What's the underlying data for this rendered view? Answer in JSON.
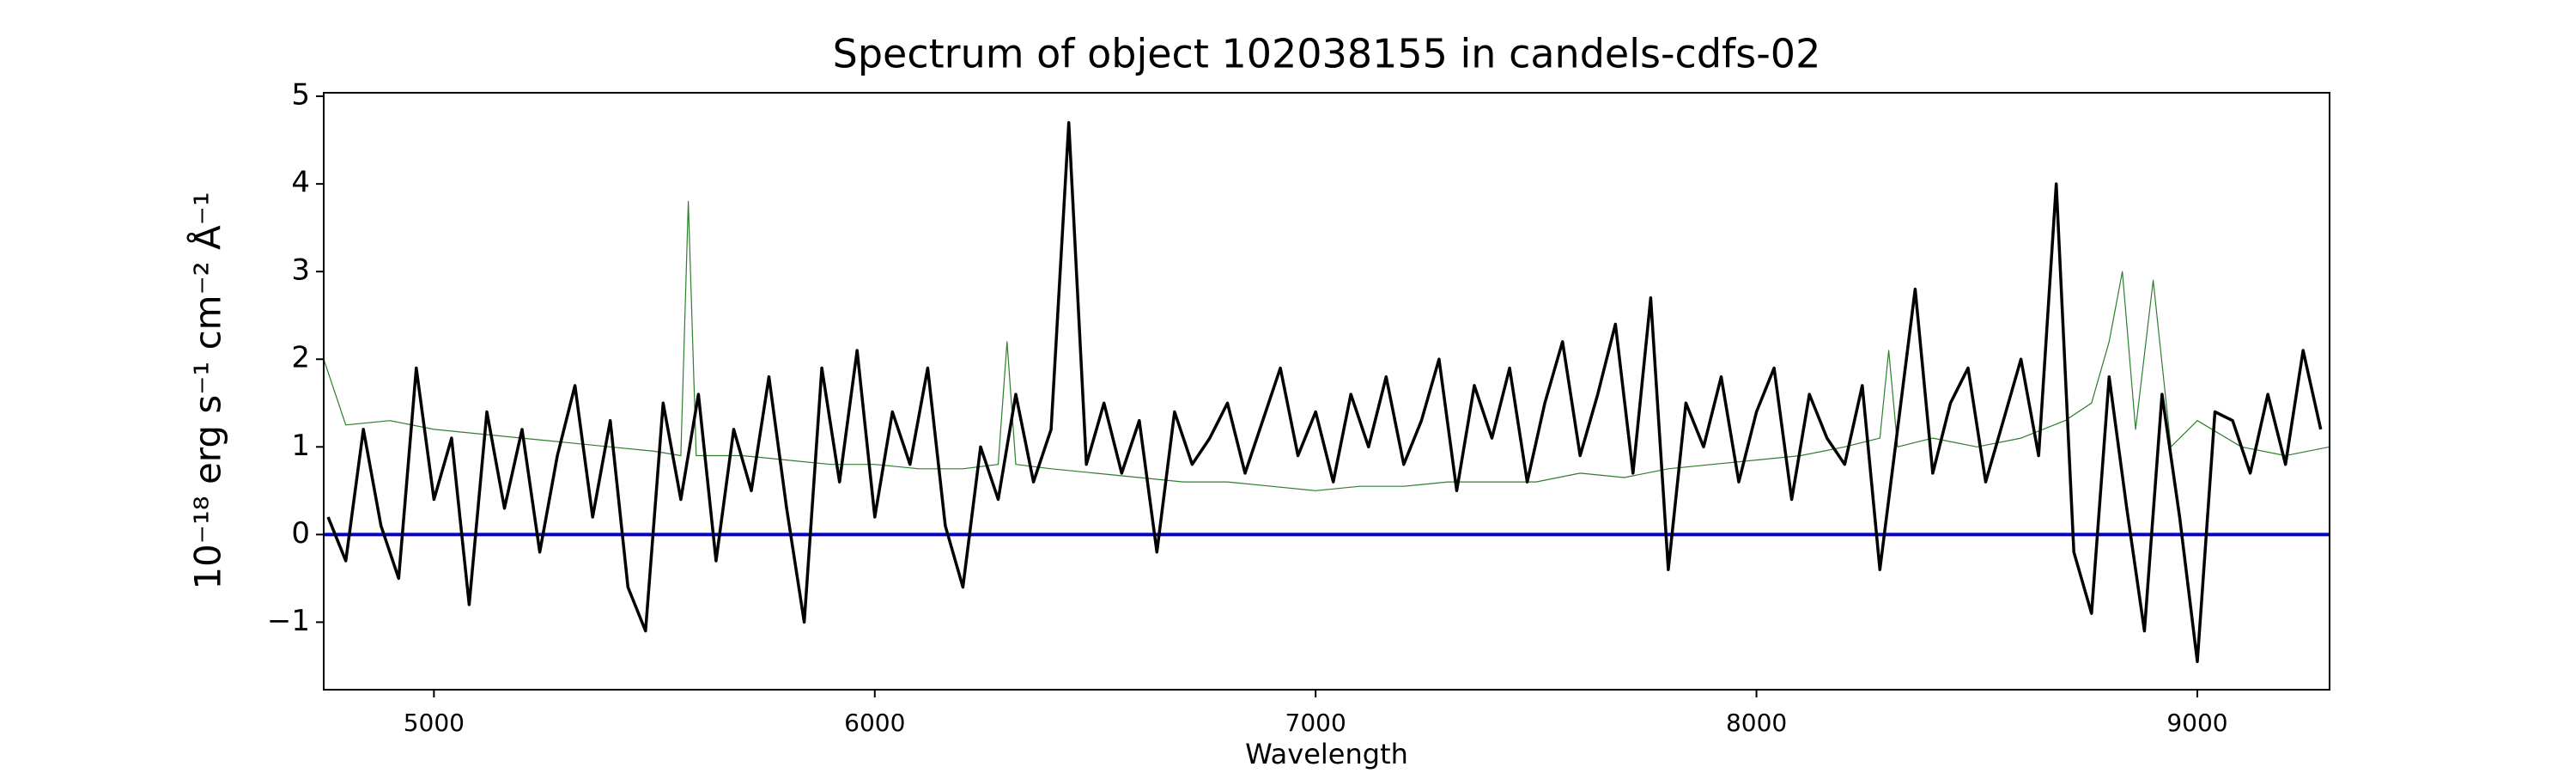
{
  "chart_data": {
    "type": "line",
    "title": "Spectrum of object 102038155 in candels-cdfs-02",
    "x_label": "Wavelength",
    "y_label": "10⁻¹⁸ erg s⁻¹ cm⁻² Å⁻¹",
    "xlim": [
      4750,
      9300
    ],
    "ylim": [
      -1.77,
      5.04
    ],
    "xticks": [
      5000,
      6000,
      7000,
      8000,
      9000
    ],
    "yticks": [
      {
        "value": -1,
        "label": "−1"
      },
      0,
      1,
      2,
      3,
      4,
      5
    ],
    "grid": false,
    "series": [
      {
        "color": "#2e7d2e",
        "width": 1.2,
        "x": [
          4750,
          4800,
          4900,
          5000,
          5100,
          5200,
          5300,
          5400,
          5500,
          5560,
          5577,
          5595,
          5700,
          5800,
          5900,
          6000,
          6100,
          6200,
          6280,
          6300,
          6320,
          6400,
          6500,
          6600,
          6700,
          6800,
          6900,
          7000,
          7100,
          7200,
          7300,
          7400,
          7500,
          7600,
          7700,
          7800,
          7900,
          8000,
          8100,
          8200,
          8280,
          8300,
          8320,
          8400,
          8500,
          8600,
          8700,
          8760,
          8800,
          8830,
          8860,
          8900,
          8940,
          9000,
          9100,
          9200,
          9300
        ],
        "values": [
          2.0,
          1.25,
          1.3,
          1.2,
          1.15,
          1.1,
          1.05,
          1.0,
          0.95,
          0.9,
          3.8,
          0.9,
          0.9,
          0.85,
          0.8,
          0.8,
          0.75,
          0.75,
          0.8,
          2.2,
          0.8,
          0.75,
          0.7,
          0.65,
          0.6,
          0.6,
          0.55,
          0.5,
          0.55,
          0.55,
          0.6,
          0.6,
          0.6,
          0.7,
          0.65,
          0.75,
          0.8,
          0.85,
          0.9,
          1.0,
          1.1,
          2.1,
          1.0,
          1.1,
          1.0,
          1.1,
          1.3,
          1.5,
          2.2,
          3.0,
          1.2,
          2.9,
          1.0,
          1.3,
          1.0,
          0.9,
          1.0
        ]
      },
      {
        "color": "#0000cc",
        "width": 4,
        "x": [
          4750,
          9300
        ],
        "values": [
          0,
          0
        ]
      },
      {
        "color": "#000000",
        "width": 3.5,
        "x": [
          4760,
          4800,
          4840,
          4880,
          4920,
          4960,
          5000,
          5040,
          5080,
          5120,
          5160,
          5200,
          5240,
          5280,
          5320,
          5360,
          5400,
          5440,
          5480,
          5520,
          5560,
          5600,
          5640,
          5680,
          5720,
          5760,
          5800,
          5840,
          5880,
          5920,
          5960,
          6000,
          6040,
          6080,
          6120,
          6160,
          6200,
          6240,
          6280,
          6320,
          6360,
          6400,
          6440,
          6480,
          6520,
          6560,
          6600,
          6640,
          6680,
          6720,
          6760,
          6800,
          6840,
          6880,
          6920,
          6960,
          7000,
          7040,
          7080,
          7120,
          7160,
          7200,
          7240,
          7280,
          7320,
          7360,
          7400,
          7440,
          7480,
          7520,
          7560,
          7600,
          7640,
          7680,
          7720,
          7760,
          7800,
          7840,
          7880,
          7920,
          7960,
          8000,
          8040,
          8080,
          8120,
          8160,
          8200,
          8240,
          8280,
          8320,
          8360,
          8400,
          8440,
          8480,
          8520,
          8560,
          8600,
          8640,
          8680,
          8720,
          8760,
          8800,
          8840,
          8880,
          8920,
          8960,
          9000,
          9040,
          9080,
          9120,
          9160,
          9200,
          9240,
          9280
        ],
        "values": [
          0.2,
          -0.3,
          1.2,
          0.1,
          -0.5,
          1.9,
          0.4,
          1.1,
          -0.8,
          1.4,
          0.3,
          1.2,
          -0.2,
          0.9,
          1.7,
          0.2,
          1.3,
          -0.6,
          -1.1,
          1.5,
          0.4,
          1.6,
          -0.3,
          1.2,
          0.5,
          1.8,
          0.3,
          -1.0,
          1.9,
          0.6,
          2.1,
          0.2,
          1.4,
          0.8,
          1.9,
          0.1,
          -0.6,
          1.0,
          0.4,
          1.6,
          0.6,
          1.2,
          4.7,
          0.8,
          1.5,
          0.7,
          1.3,
          -0.2,
          1.4,
          0.8,
          1.1,
          1.5,
          0.7,
          1.3,
          1.9,
          0.9,
          1.4,
          0.6,
          1.6,
          1.0,
          1.8,
          0.8,
          1.3,
          2.0,
          0.5,
          1.7,
          1.1,
          1.9,
          0.6,
          1.5,
          2.2,
          0.9,
          1.6,
          2.4,
          0.7,
          2.7,
          -0.4,
          1.5,
          1.0,
          1.8,
          0.6,
          1.4,
          1.9,
          0.4,
          1.6,
          1.1,
          0.8,
          1.7,
          -0.4,
          1.2,
          2.8,
          0.7,
          1.5,
          1.9,
          0.6,
          1.3,
          2.0,
          0.9,
          4.0,
          -0.2,
          -0.9,
          1.8,
          0.3,
          -1.1,
          1.6,
          0.2,
          -1.45,
          1.4,
          1.3,
          0.7,
          1.6,
          0.8,
          2.1,
          1.2
        ]
      }
    ]
  }
}
